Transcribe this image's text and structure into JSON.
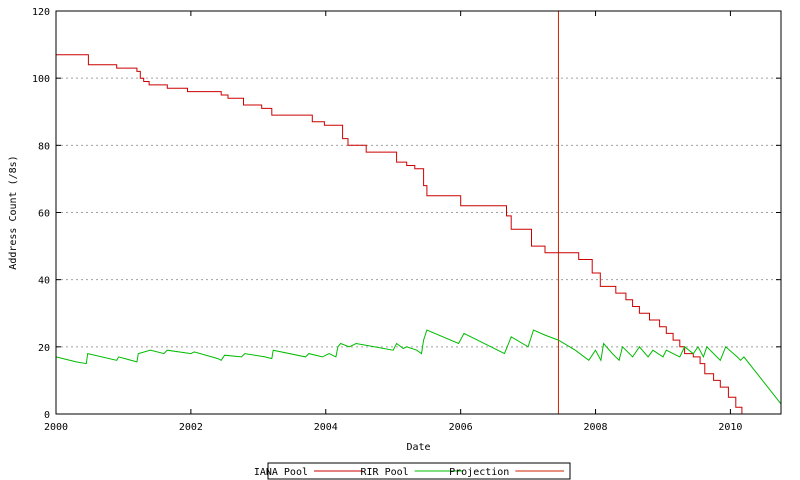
{
  "chart_data": {
    "type": "line",
    "title": "",
    "xlabel": "Date",
    "ylabel": "Address Count (/8s)",
    "xlim": [
      2000,
      2010.75
    ],
    "ylim": [
      0,
      120
    ],
    "x_ticks": [
      2000,
      2002,
      2004,
      2006,
      2008,
      2010
    ],
    "y_ticks": [
      0,
      20,
      40,
      60,
      80,
      100,
      120
    ],
    "grid": true,
    "legend_position": "bottom-center",
    "vertical_marker": {
      "x": 2007.45,
      "color": "#cc2200"
    },
    "series": [
      {
        "name": "IANA Pool",
        "color": "#cc0000",
        "step": true,
        "points": [
          [
            2000.0,
            107
          ],
          [
            2000.48,
            104
          ],
          [
            2000.9,
            103
          ],
          [
            2001.2,
            102
          ],
          [
            2001.25,
            100
          ],
          [
            2001.3,
            99
          ],
          [
            2001.38,
            98
          ],
          [
            2001.65,
            97
          ],
          [
            2001.95,
            96
          ],
          [
            2002.45,
            95
          ],
          [
            2002.55,
            94
          ],
          [
            2002.78,
            92
          ],
          [
            2003.05,
            91
          ],
          [
            2003.2,
            89
          ],
          [
            2003.8,
            87
          ],
          [
            2003.98,
            86
          ],
          [
            2004.25,
            82
          ],
          [
            2004.33,
            80
          ],
          [
            2004.6,
            78
          ],
          [
            2005.05,
            75
          ],
          [
            2005.2,
            74
          ],
          [
            2005.32,
            73
          ],
          [
            2005.45,
            68
          ],
          [
            2005.5,
            65
          ],
          [
            2006.0,
            62
          ],
          [
            2006.68,
            59
          ],
          [
            2006.75,
            55
          ],
          [
            2007.05,
            50
          ],
          [
            2007.25,
            48
          ],
          [
            2007.75,
            46
          ],
          [
            2007.95,
            42
          ],
          [
            2008.07,
            38
          ],
          [
            2008.3,
            36
          ],
          [
            2008.45,
            34
          ],
          [
            2008.55,
            32
          ],
          [
            2008.65,
            30
          ],
          [
            2008.8,
            28
          ],
          [
            2008.95,
            26
          ],
          [
            2009.05,
            24
          ],
          [
            2009.15,
            22
          ],
          [
            2009.25,
            20
          ],
          [
            2009.32,
            18
          ],
          [
            2009.45,
            17
          ],
          [
            2009.55,
            15
          ],
          [
            2009.62,
            12
          ],
          [
            2009.75,
            10
          ],
          [
            2009.85,
            8
          ],
          [
            2009.97,
            5
          ],
          [
            2010.08,
            2
          ],
          [
            2010.17,
            0
          ]
        ]
      },
      {
        "name": "RIR Pool",
        "color": "#00bb00",
        "step": false,
        "points": [
          [
            2000.0,
            17
          ],
          [
            2000.3,
            15.5
          ],
          [
            2000.45,
            15
          ],
          [
            2000.47,
            18
          ],
          [
            2000.9,
            16
          ],
          [
            2000.93,
            17
          ],
          [
            2001.2,
            15.5
          ],
          [
            2001.22,
            18
          ],
          [
            2001.4,
            19
          ],
          [
            2001.6,
            18
          ],
          [
            2001.65,
            19
          ],
          [
            2002.0,
            18
          ],
          [
            2002.05,
            18.5
          ],
          [
            2002.4,
            16.5
          ],
          [
            2002.45,
            16
          ],
          [
            2002.5,
            17.5
          ],
          [
            2002.75,
            17
          ],
          [
            2002.8,
            18
          ],
          [
            2003.1,
            17
          ],
          [
            2003.2,
            16.5
          ],
          [
            2003.22,
            19
          ],
          [
            2003.7,
            17
          ],
          [
            2003.75,
            18
          ],
          [
            2003.95,
            17
          ],
          [
            2004.05,
            18
          ],
          [
            2004.15,
            17
          ],
          [
            2004.18,
            20
          ],
          [
            2004.22,
            21
          ],
          [
            2004.35,
            20
          ],
          [
            2004.45,
            21
          ],
          [
            2005.0,
            19
          ],
          [
            2005.05,
            21
          ],
          [
            2005.15,
            19.5
          ],
          [
            2005.2,
            20
          ],
          [
            2005.35,
            19
          ],
          [
            2005.42,
            18
          ],
          [
            2005.45,
            22
          ],
          [
            2005.5,
            25
          ],
          [
            2005.97,
            21
          ],
          [
            2006.05,
            24
          ],
          [
            2006.65,
            18
          ],
          [
            2006.75,
            23
          ],
          [
            2007.0,
            20
          ],
          [
            2007.08,
            25
          ],
          [
            2007.25,
            23.5
          ],
          [
            2007.45,
            22
          ],
          [
            2007.7,
            19
          ],
          [
            2007.9,
            16
          ],
          [
            2008.0,
            19
          ],
          [
            2008.08,
            16
          ],
          [
            2008.12,
            21
          ],
          [
            2008.25,
            18
          ],
          [
            2008.35,
            16
          ],
          [
            2008.4,
            20
          ],
          [
            2008.55,
            17
          ],
          [
            2008.65,
            20
          ],
          [
            2008.78,
            17
          ],
          [
            2008.85,
            19
          ],
          [
            2009.0,
            17
          ],
          [
            2009.05,
            19
          ],
          [
            2009.25,
            17
          ],
          [
            2009.32,
            20
          ],
          [
            2009.45,
            18
          ],
          [
            2009.52,
            20
          ],
          [
            2009.6,
            17
          ],
          [
            2009.65,
            20
          ],
          [
            2009.75,
            18
          ],
          [
            2009.85,
            16
          ],
          [
            2009.93,
            20
          ],
          [
            2010.1,
            17
          ],
          [
            2010.15,
            16
          ],
          [
            2010.2,
            17
          ],
          [
            2010.75,
            3
          ]
        ]
      },
      {
        "name": "Projection",
        "color": "#cc2200",
        "step": false,
        "points": []
      }
    ]
  }
}
